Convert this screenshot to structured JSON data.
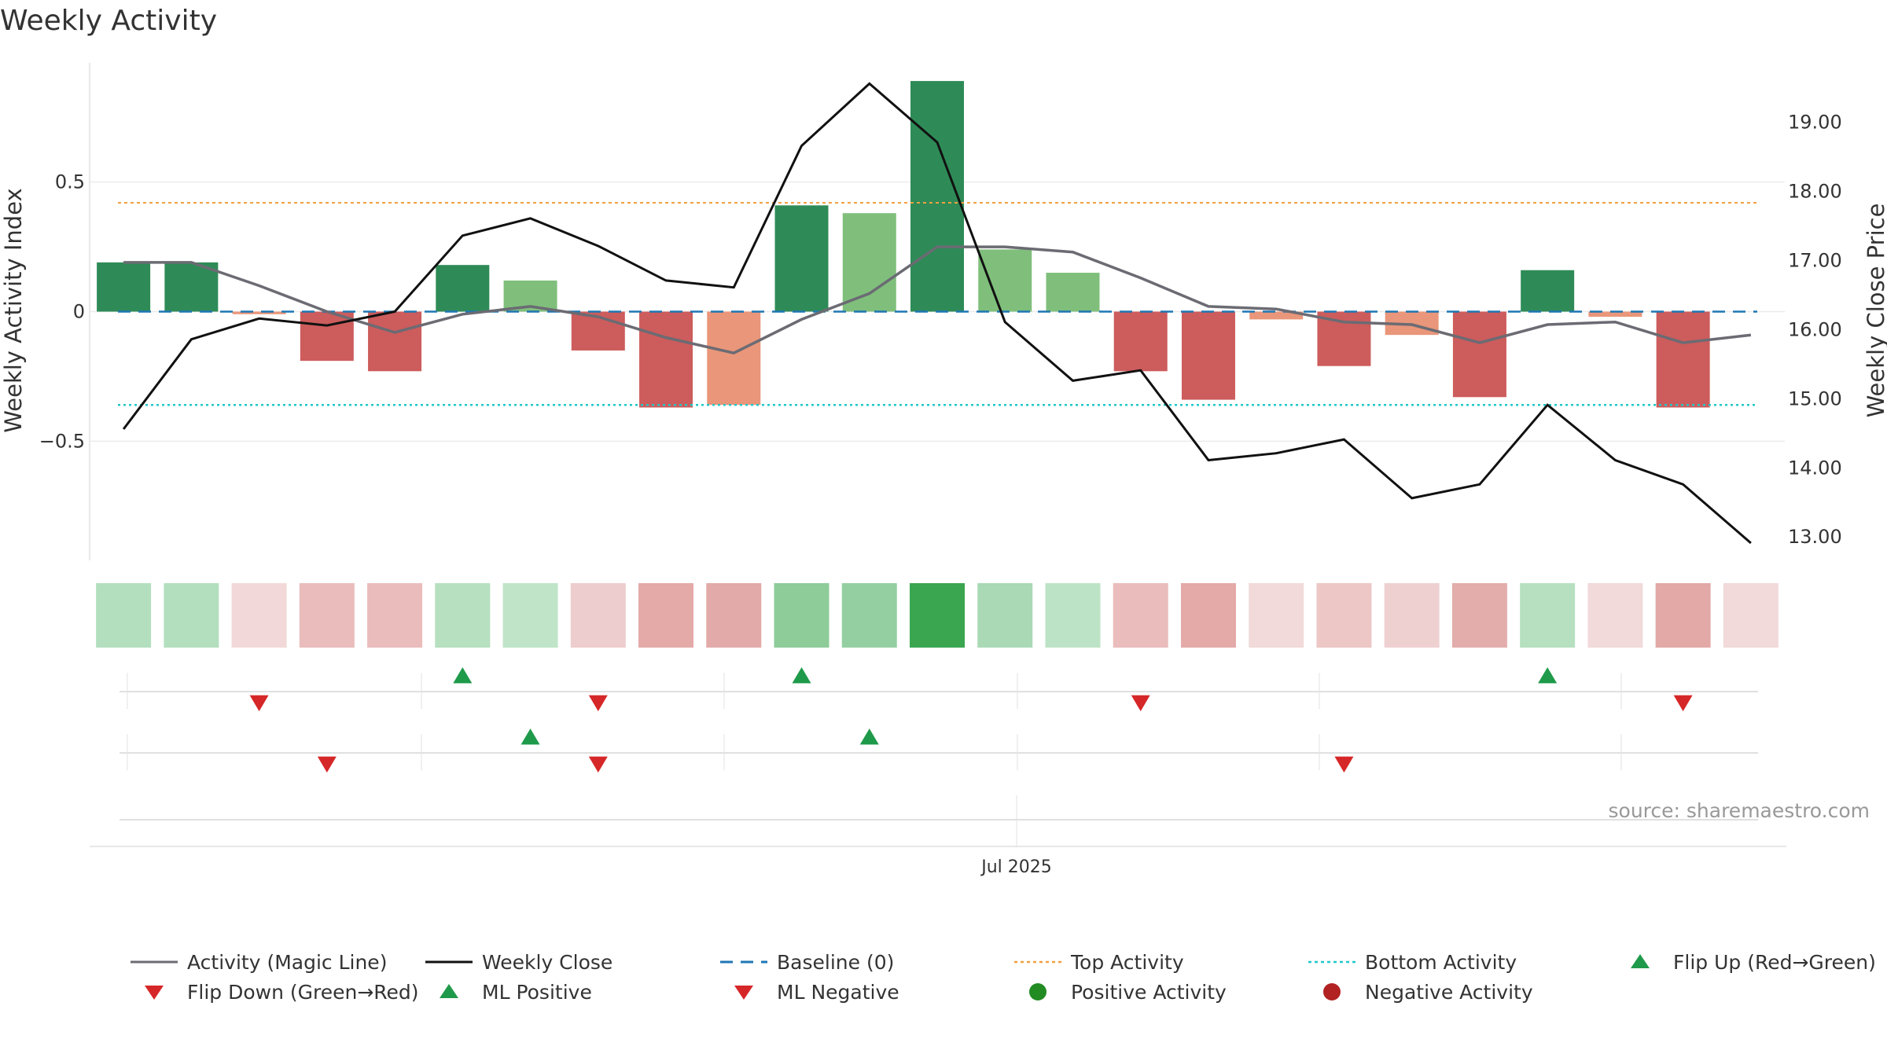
{
  "chart_data": {
    "type": "bar",
    "title": "Weekly Activity",
    "ylabel": "Weekly Activity Index",
    "y2label": "Weekly Close Price",
    "xtick_label": "Jul 2025",
    "source": "source: sharemaestro.com",
    "ylim": [
      -0.96,
      0.96
    ],
    "y2lim": [
      12.65,
      19.85
    ],
    "yticks": [
      0.5,
      0,
      -0.5
    ],
    "ytick_labels": [
      "0.5",
      "0",
      "−0.5"
    ],
    "y2ticks": [
      19,
      18,
      17,
      16,
      15,
      14,
      13
    ],
    "y2tick_labels": [
      "19.00",
      "18.00",
      "17.00",
      "16.00",
      "15.00",
      "14.00",
      "13.00"
    ],
    "activity": [
      0.19,
      0.19,
      -0.01,
      -0.19,
      -0.23,
      0.18,
      0.12,
      -0.15,
      -0.37,
      -0.36,
      0.41,
      0.38,
      0.89,
      0.24,
      0.15,
      -0.23,
      -0.34,
      -0.03,
      -0.21,
      -0.09,
      -0.33,
      0.16,
      -0.02,
      -0.37,
      0.0
    ],
    "magic_line": [
      0.19,
      0.19,
      0.1,
      0.0,
      -0.08,
      -0.01,
      0.02,
      -0.02,
      -0.1,
      -0.16,
      -0.03,
      0.07,
      0.25,
      0.25,
      0.23,
      0.13,
      0.02,
      0.01,
      -0.04,
      -0.05,
      -0.12,
      -0.05,
      -0.04,
      -0.12,
      -0.09
    ],
    "weekly_close": [
      14.55,
      15.85,
      16.15,
      16.05,
      16.25,
      17.35,
      17.6,
      17.2,
      16.7,
      16.6,
      18.65,
      19.55,
      18.7,
      16.1,
      15.25,
      15.4,
      14.1,
      14.2,
      14.4,
      13.55,
      13.75,
      14.9,
      14.1,
      13.75,
      12.9
    ],
    "baseline": 0,
    "top_activity": 0.42,
    "bottom_activity": -0.36,
    "heat_colors": [
      "#b3dfbf",
      "#b3dfbf",
      "#f2d8d8",
      "#eabcbc",
      "#eabcbc",
      "#b6e0c0",
      "#c0e4c8",
      "#edcdcd",
      "#e4aaa8",
      "#e2aaa8",
      "#8ecc9a",
      "#94cfa1",
      "#3aa650",
      "#a9d9b5",
      "#bde3c6",
      "#eabcbc",
      "#e4aaa8",
      "#f2dada",
      "#edc6c6",
      "#efd0d0",
      "#e2adab",
      "#b6e0c0",
      "#f2dada",
      "#e2a9a7",
      "#f2dada"
    ],
    "flip_up_row1": [
      5,
      10,
      21
    ],
    "flip_down_row1": [
      2,
      7,
      15,
      23
    ],
    "flip_up_row2": [
      6,
      11
    ],
    "flip_down_row2": [
      3,
      7,
      18
    ],
    "colors": {
      "strong_green": "#2e8b57",
      "light_green": "#7fbf7b",
      "red": "#cd5c5c",
      "salmon": "#e9967a",
      "magic_line": "#6b6b73",
      "weekly_close": "#111111",
      "baseline": "#1f77b4",
      "top_activity": "#f0a040",
      "bottom_activity": "#20c8c8",
      "marker_up": "#1f9a4a",
      "marker_down": "#d62728",
      "positive": "#228b22",
      "negative": "#b22222"
    }
  },
  "legend": [
    {
      "label": "Activity (Magic Line)",
      "icon": "solid-line",
      "color": "#6b6b73"
    },
    {
      "label": "Weekly Close",
      "icon": "solid-line",
      "color": "#111111"
    },
    {
      "label": "Baseline (0)",
      "icon": "dashed-line",
      "color": "#1f77b4"
    },
    {
      "label": "Top Activity",
      "icon": "dotted-line",
      "color": "#f0a040"
    },
    {
      "label": "Bottom Activity",
      "icon": "dotted-line",
      "color": "#20c8c8"
    },
    {
      "label": "Flip Up (Red→Green)",
      "icon": "triangle-up",
      "color": "#1f9a4a"
    },
    {
      "label": "Flip Down (Green→Red)",
      "icon": "triangle-down",
      "color": "#d62728"
    },
    {
      "label": "ML Positive",
      "icon": "triangle-up",
      "color": "#1f9a4a"
    },
    {
      "label": "ML Negative",
      "icon": "triangle-down",
      "color": "#d62728"
    },
    {
      "label": "Positive Activity",
      "icon": "circle",
      "color": "#228b22"
    },
    {
      "label": "Negative Activity",
      "icon": "circle",
      "color": "#b22222"
    }
  ]
}
